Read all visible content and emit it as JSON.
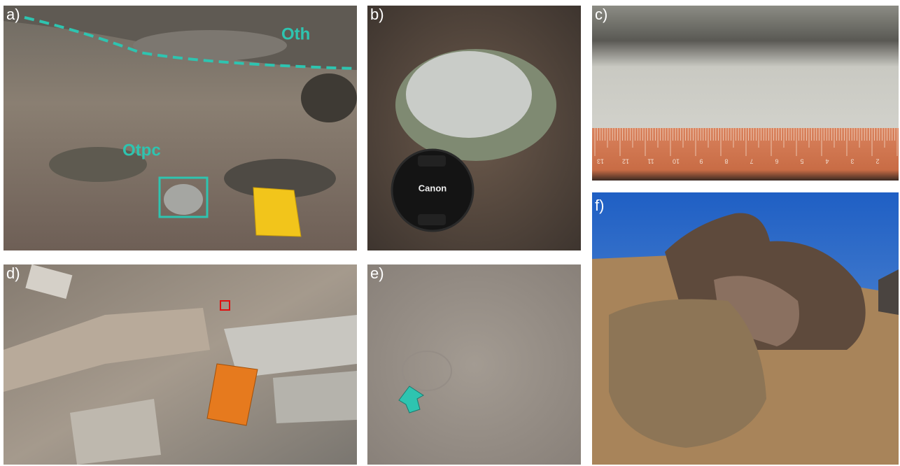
{
  "panels": [
    {
      "label": "a)",
      "annotations": [
        "Oth",
        "Otpc"
      ]
    },
    {
      "label": "b)",
      "annotations": [
        "Canon"
      ]
    },
    {
      "label": "c)",
      "ruler_labels": [
        "13",
        "12",
        "11",
        "10",
        "9",
        "8",
        "7",
        "6",
        "5",
        "4",
        "3",
        "2"
      ]
    },
    {
      "label": "d)"
    },
    {
      "label": "e)"
    },
    {
      "label": "f)"
    }
  ]
}
